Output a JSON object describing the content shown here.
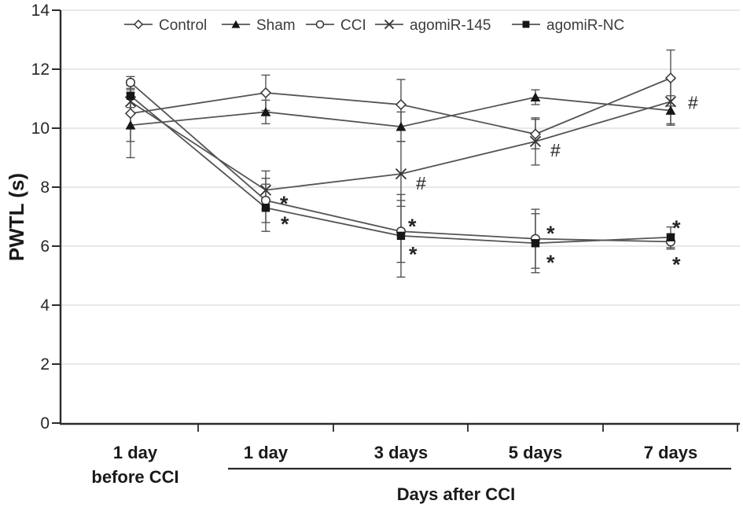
{
  "figure": {
    "background": "#ffffff",
    "axis_color": "#2b2b2b",
    "grid_color": "#d9d9d9",
    "line_color": "#545456",
    "marker_fill": "#161616",
    "marker_stroke": "#333333",
    "text_color": "#1a1a1a",
    "legend_text_color": "#3c3c3c",
    "tick_label_color": "#262626"
  },
  "chart_data": {
    "type": "line",
    "title": "",
    "ylabel": "PWTL (s)",
    "xlabel": "Days after CCI",
    "ylim": [
      0,
      14
    ],
    "yticks": [
      0,
      2,
      4,
      6,
      8,
      10,
      12,
      14
    ],
    "grid": true,
    "legend_position": "top",
    "categories": [
      "1 day before CCI",
      "1 day",
      "3 days",
      "5 days",
      "7 days"
    ],
    "category_labels": [
      [
        "1 day",
        "before CCI"
      ],
      [
        "1 day"
      ],
      [
        "3 days"
      ],
      [
        "5 days"
      ],
      [
        "7 days"
      ]
    ],
    "after_cci_group_label": "Days after CCI",
    "series": [
      {
        "name": "Control",
        "marker": "open-diamond",
        "values": [
          10.5,
          11.2,
          10.8,
          9.8,
          11.7
        ],
        "errors": [
          0.95,
          0.6,
          0.85,
          0.5,
          0.95
        ]
      },
      {
        "name": "Sham",
        "marker": "filled-triangle",
        "values": [
          10.1,
          10.55,
          10.05,
          11.05,
          10.6
        ],
        "errors": [
          1.1,
          0.4,
          0.5,
          0.25,
          0.5
        ]
      },
      {
        "name": "CCI",
        "marker": "open-circle",
        "values": [
          11.55,
          7.55,
          6.5,
          6.25,
          6.15
        ],
        "errors": [
          0.2,
          0.75,
          1.05,
          1.0,
          0.25
        ]
      },
      {
        "name": "agomiR-145",
        "marker": "x-cross",
        "values": [
          10.9,
          7.9,
          8.45,
          9.55,
          10.9
        ],
        "errors": [
          0.4,
          0.65,
          1.1,
          0.8,
          0.75
        ]
      },
      {
        "name": "agomiR-NC",
        "marker": "filled-square",
        "values": [
          11.1,
          7.3,
          6.35,
          6.1,
          6.3
        ],
        "errors": [
          0.4,
          0.8,
          1.4,
          1.0,
          0.35
        ]
      }
    ],
    "annotations": [
      {
        "category": "1 day",
        "symbol": "*",
        "value": 7.57,
        "dx": 18
      },
      {
        "category": "1 day",
        "symbol": "*",
        "value": 6.88,
        "dx": 19
      },
      {
        "category": "3 days",
        "symbol": "#",
        "value": 8.14,
        "dx": 19
      },
      {
        "category": "3 days",
        "symbol": "*",
        "value": 6.8,
        "dx": 9
      },
      {
        "category": "3 days",
        "symbol": "*",
        "value": 5.86,
        "dx": 10
      },
      {
        "category": "5 days",
        "symbol": "#",
        "value": 9.26,
        "dx": 19
      },
      {
        "category": "5 days",
        "symbol": "*",
        "value": 6.56,
        "dx": 14
      },
      {
        "category": "5 days",
        "symbol": "*",
        "value": 5.57,
        "dx": 14
      },
      {
        "category": "7 days",
        "symbol": "#",
        "value": 10.87,
        "dx": 22
      },
      {
        "category": "7 days",
        "symbol": "*",
        "value": 6.75,
        "dx": 2
      },
      {
        "category": "7 days",
        "symbol": "*",
        "value": 5.51,
        "dx": 2
      }
    ]
  }
}
